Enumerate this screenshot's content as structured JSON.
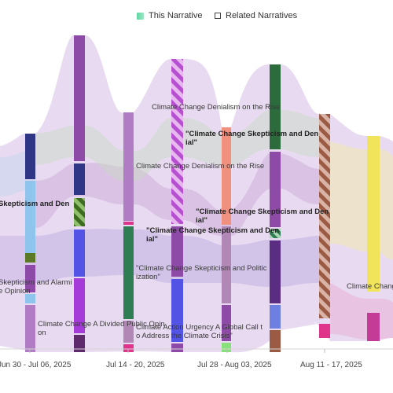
{
  "legend": {
    "this_label": "This Narrative",
    "related_label": "Related Narratives"
  },
  "axis": {
    "ticks": [
      "Jun 30 - Jul 06, 2025",
      "Jul 14 - 20, 2025",
      "Jul 28 - Aug 03, 2025",
      "Aug 11 - 17, 2025"
    ]
  },
  "labels": [
    {
      "key": "c1-skepticism",
      "lines": [
        "Skepticism and Den"
      ],
      "bold": true
    },
    {
      "key": "c1-alarm",
      "lines": [
        "Skepticism and Alarmi",
        "e Opinion"
      ],
      "bold": false
    },
    {
      "key": "c2-divided",
      "lines": [
        "Climate Change A Divided Public Opin",
        "on"
      ],
      "bold": false
    },
    {
      "key": "c3-denialism",
      "lines": [
        "Climate Change Denialism on the Rise"
      ],
      "bold": false
    },
    {
      "key": "c3-politicization",
      "lines": [
        "\"Climate Change Skepticism and Politic",
        "ization\""
      ],
      "bold": false
    },
    {
      "key": "c4-denialism",
      "lines": [
        "Climate Change Denialism on the Rise"
      ],
      "bold": false
    },
    {
      "key": "c4-urgency",
      "lines": [
        "Climate Action Urgency A Global Call t",
        "o Address the Climate Crisis\""
      ],
      "bold": false
    },
    {
      "key": "c5-skeptic-a",
      "lines": [
        "\"Climate Change Skepticism and Den",
        "ial\""
      ],
      "bold": true
    },
    {
      "key": "c5-skeptic-b",
      "lines": [
        "\"Climate Change Skepticism and Den",
        "ial\""
      ],
      "bold": true
    },
    {
      "key": "c6-skeptic",
      "lines": [
        "\"Climate Change Skepticism and Den",
        "ial\""
      ],
      "bold": true
    },
    {
      "key": "c8-climate",
      "lines": [
        "Climate Change"
      ],
      "bold": false
    }
  ],
  "colors": {
    "this_narrative": "#6ddab0",
    "navy": "#2f3686",
    "lightblue": "#8fc4ec",
    "olive": "#5c7a25",
    "purple": "#8e4aa7",
    "orchid": "#b07cc4",
    "violet": "#a53bd8",
    "blue": "#5353e6",
    "darkpurple": "#5e2a6b",
    "green": "#2e7d53",
    "pink": "#e0348b",
    "salmon": "#f0907f",
    "mauve": "#b187b6",
    "lime": "#88e07a",
    "forest": "#2c6b3c",
    "brown": "#9b5a44",
    "yellow": "#f1e45b",
    "magenta": "#c33a97"
  }
}
